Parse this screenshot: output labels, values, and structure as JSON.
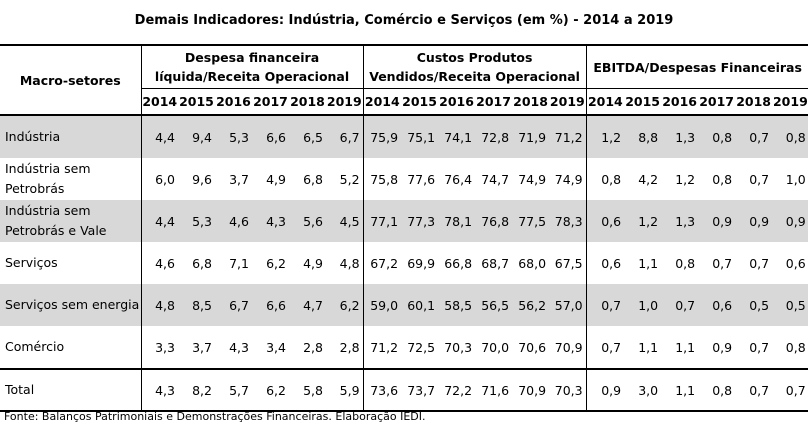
{
  "title": "Demais Indicadores: Indústria, Comércio e Serviços (em %) - 2014 a 2019",
  "header": {
    "macro": "Macro-setores",
    "groups": [
      "Despesa financeira líquida/Receita Operacional",
      "Custos Produtos Vendidos/Receita Operacional",
      "EBITDA/Despesas Financeiras"
    ],
    "years": [
      "2014",
      "2015",
      "2016",
      "2017",
      "2018",
      "2019"
    ]
  },
  "rows": [
    {
      "label": "Indústria",
      "values": [
        "4,4",
        "9,4",
        "5,3",
        "6,6",
        "6,5",
        "6,7",
        "75,9",
        "75,1",
        "74,1",
        "72,8",
        "71,9",
        "71,2",
        "1,2",
        "8,8",
        "1,3",
        "0,8",
        "0,7",
        "0,8"
      ]
    },
    {
      "label": "Indústria sem Petrobrás",
      "values": [
        "6,0",
        "9,6",
        "3,7",
        "4,9",
        "6,8",
        "5,2",
        "75,8",
        "77,6",
        "76,4",
        "74,7",
        "74,9",
        "74,9",
        "0,8",
        "4,2",
        "1,2",
        "0,8",
        "0,7",
        "1,0"
      ]
    },
    {
      "label": "Indústria sem Petrobrás e Vale",
      "values": [
        "4,4",
        "5,3",
        "4,6",
        "4,3",
        "5,6",
        "4,5",
        "77,1",
        "77,3",
        "78,1",
        "76,8",
        "77,5",
        "78,3",
        "0,6",
        "1,2",
        "1,3",
        "0,9",
        "0,9",
        "0,9"
      ]
    },
    {
      "label": "Serviços",
      "values": [
        "4,6",
        "6,8",
        "7,1",
        "6,2",
        "4,9",
        "4,8",
        "67,2",
        "69,9",
        "66,8",
        "68,7",
        "68,0",
        "67,5",
        "0,6",
        "1,1",
        "0,8",
        "0,7",
        "0,7",
        "0,6"
      ]
    },
    {
      "label": " Serviços sem energia",
      "values": [
        "4,8",
        "8,5",
        "6,7",
        "6,6",
        "4,7",
        "6,2",
        "59,0",
        "60,1",
        "58,5",
        "56,5",
        "56,2",
        "57,0",
        "0,7",
        "1,0",
        "0,7",
        "0,6",
        "0,5",
        "0,5"
      ]
    },
    {
      "label": "Comércio",
      "values": [
        "3,3",
        "3,7",
        "4,3",
        "3,4",
        "2,8",
        "2,8",
        "71,2",
        "72,5",
        "70,3",
        "70,0",
        "70,6",
        "70,9",
        "0,7",
        "1,1",
        "1,1",
        "0,9",
        "0,7",
        "0,8"
      ]
    },
    {
      "label": "Total",
      "values": [
        "4,3",
        "8,2",
        "5,7",
        "6,2",
        "5,8",
        "5,9",
        "73,6",
        "73,7",
        "72,2",
        "71,6",
        "70,9",
        "70,3",
        "0,9",
        "3,0",
        "1,1",
        "0,8",
        "0,7",
        "0,7"
      ]
    }
  ],
  "source": "Fonte: Balanços Patrimoniais e Demonstrações Financeiras. Elaboração IEDI."
}
